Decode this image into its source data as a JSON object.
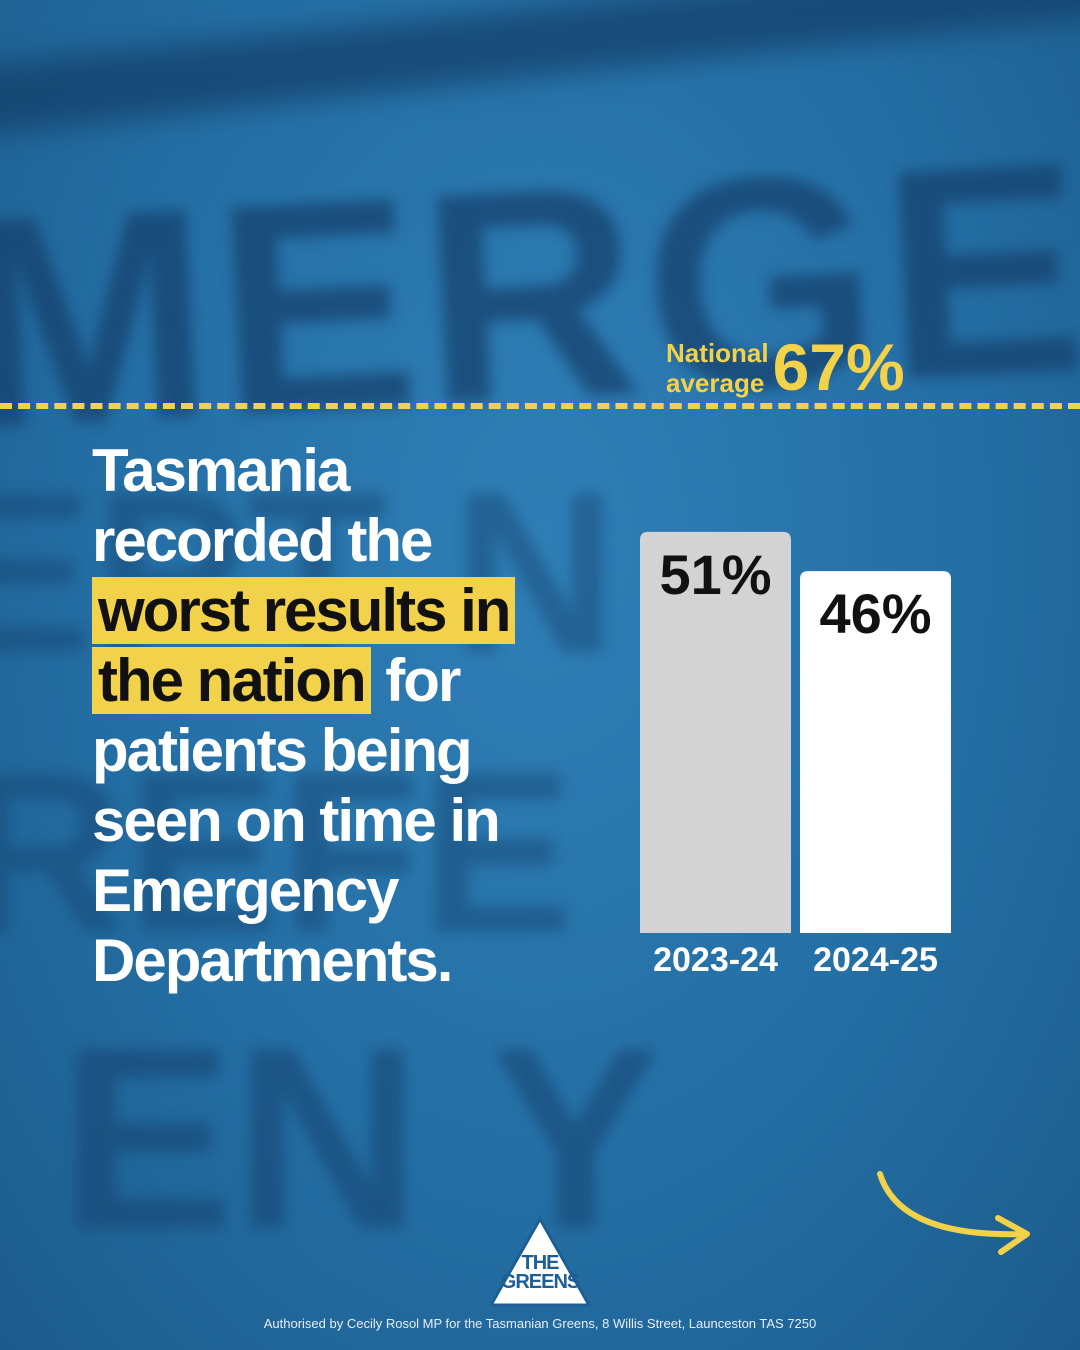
{
  "headline": {
    "part1": "Tasmania recorded the ",
    "highlight": "worst results in the nation",
    "part2": " for patients being seen on time in Emergency Departments."
  },
  "national_average": {
    "label_line1": "National",
    "label_line2": "average",
    "value_text": "67%",
    "value": 67
  },
  "chart_data": {
    "type": "bar",
    "title": "",
    "xlabel": "",
    "ylabel": "",
    "categories": [
      "2023-24",
      "2024-25"
    ],
    "values": [
      51,
      46
    ],
    "value_labels": [
      "51%",
      "46%"
    ],
    "reference_line": {
      "label": "National average",
      "value": 67
    },
    "ylim": [
      0,
      67
    ],
    "grid": false,
    "legend": "none",
    "bar_colors": [
      "#d3d3d3",
      "#ffffff"
    ]
  },
  "logo": {
    "line1": "THE",
    "line2": "GREENS"
  },
  "footer": "Authorised by Cecily Rosol MP for the Tasmanian Greens, 8 Willis Street, Launceston TAS 7250",
  "colors": {
    "accent": "#f2d14b",
    "background": "#246fa5",
    "text": "#ffffff"
  },
  "icons": {
    "next": "curved-arrow-right-icon"
  }
}
